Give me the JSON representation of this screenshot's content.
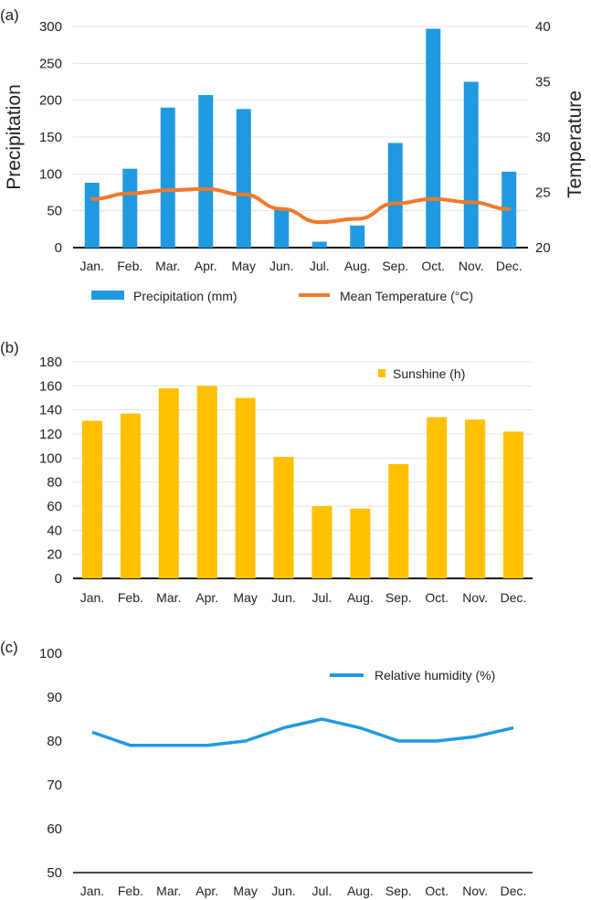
{
  "chart_data": [
    {
      "panel": "(a)",
      "type": "bar+line",
      "categories": [
        "Jan.",
        "Feb.",
        "Mar.",
        "Apr.",
        "May",
        "Jun.",
        "Jul.",
        "Aug.",
        "Sep.",
        "Oct.",
        "Nov.",
        "Dec."
      ],
      "ylabel": "Precipitation",
      "y2label": "Temperature",
      "ylim": [
        0,
        300
      ],
      "yticks": [
        0,
        50,
        100,
        150,
        200,
        250,
        300
      ],
      "y2lim": [
        20,
        40
      ],
      "y2ticks": [
        20,
        25,
        30,
        35,
        40
      ],
      "grid": true,
      "legend": "bottom",
      "series": [
        {
          "name": "Precipitation (mm)",
          "type": "bar",
          "axis": "left",
          "color": "#1f9ae0",
          "values": [
            88,
            107,
            190,
            207,
            188,
            54,
            8,
            30,
            142,
            297,
            225,
            103
          ]
        },
        {
          "name": "Mean Temperature (°C)",
          "type": "line",
          "axis": "right",
          "color": "#f07a2a",
          "values": [
            24.4,
            24.9,
            25.2,
            25.3,
            24.8,
            23.5,
            22.3,
            22.6,
            24.0,
            24.4,
            24.1,
            23.5
          ]
        }
      ]
    },
    {
      "panel": "(b)",
      "type": "bar",
      "categories": [
        "Jan.",
        "Feb.",
        "Mar.",
        "Apr.",
        "May",
        "Jun.",
        "Jul.",
        "Aug.",
        "Sep.",
        "Oct.",
        "Nov.",
        "Dec."
      ],
      "ylim": [
        0,
        180
      ],
      "yticks": [
        0,
        20,
        40,
        60,
        80,
        100,
        120,
        140,
        160,
        180
      ],
      "grid": true,
      "legend": "top-right",
      "series": [
        {
          "name": "Sunshine (h)",
          "color": "#ffc000",
          "values": [
            131,
            137,
            158,
            160,
            150,
            101,
            60,
            58,
            95,
            134,
            132,
            122
          ]
        }
      ]
    },
    {
      "panel": "(c)",
      "type": "line",
      "categories": [
        "Jan.",
        "Feb.",
        "Mar.",
        "Apr.",
        "May",
        "Jun.",
        "Jul.",
        "Aug.",
        "Sep.",
        "Oct.",
        "Nov.",
        "Dec."
      ],
      "ylim": [
        50,
        100
      ],
      "yticks": [
        50,
        60,
        70,
        80,
        90,
        100
      ],
      "grid": false,
      "legend": "top-right",
      "series": [
        {
          "name": "Relative humidity (%)",
          "color": "#1f9ae0",
          "values": [
            82,
            79,
            79,
            79,
            80,
            83,
            85,
            83,
            80,
            80,
            81,
            83
          ]
        }
      ]
    }
  ]
}
